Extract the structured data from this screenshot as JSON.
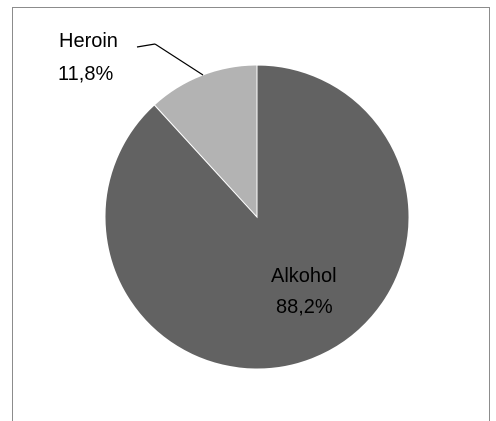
{
  "chart_data": {
    "type": "pie",
    "title": "",
    "slices": [
      {
        "label": "Alkohol",
        "value_label": "88,2%",
        "value": 88.2,
        "color": "#626262"
      },
      {
        "label": "Heroin",
        "value_label": "11,8%",
        "value": 11.8,
        "color": "#b3b3b3"
      }
    ],
    "start_angle_deg": 0,
    "direction": "clockwise",
    "legend": "none",
    "border_color": "#8c8c8c"
  }
}
